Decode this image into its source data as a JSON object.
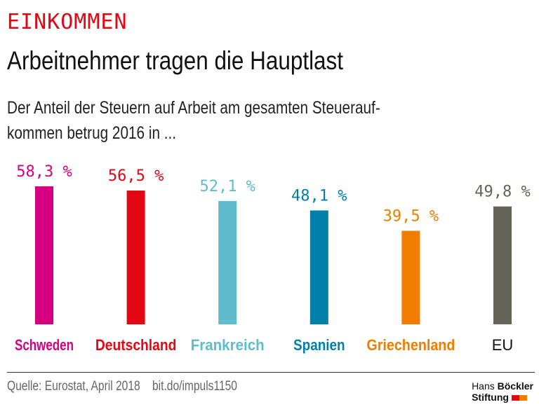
{
  "kicker": "EINKOMMEN",
  "title": "Arbeitnehmer tragen die Hauptlast",
  "subtitle": "Der Anteil der Steuern auf Arbeit am gesamten Steuerauf-kommen betrug 2016 in ...",
  "subtitle_line1": "Der Anteil der Steuern auf Arbeit am gesamten Steuerauf-",
  "subtitle_line2": "kommen betrug 2016 in ...",
  "source": "Quelle: Eurostat, April 2018",
  "link": "bit.do/impuls1150",
  "logo": {
    "line1a": "Hans",
    "line1b": "Böckler",
    "line2": "Stiftung",
    "colors": [
      "#e30613",
      "#f07d00"
    ]
  },
  "chart_data": {
    "type": "bar",
    "categories": [
      "Schweden",
      "Deutschland",
      "Frankreich",
      "Spanien",
      "Griechenland",
      "EU"
    ],
    "values": [
      58.3,
      56.5,
      52.1,
      48.1,
      39.5,
      49.8
    ],
    "value_labels": [
      "58,3 %",
      "56,5 %",
      "52,1 %",
      "48,1 %",
      "39,5 %",
      "49,8 %"
    ],
    "colors": [
      "#d5007f",
      "#e30613",
      "#5fbccc",
      "#0080a8",
      "#f07d00",
      "#646459"
    ],
    "ylim": [
      0,
      100
    ],
    "grid": false
  }
}
